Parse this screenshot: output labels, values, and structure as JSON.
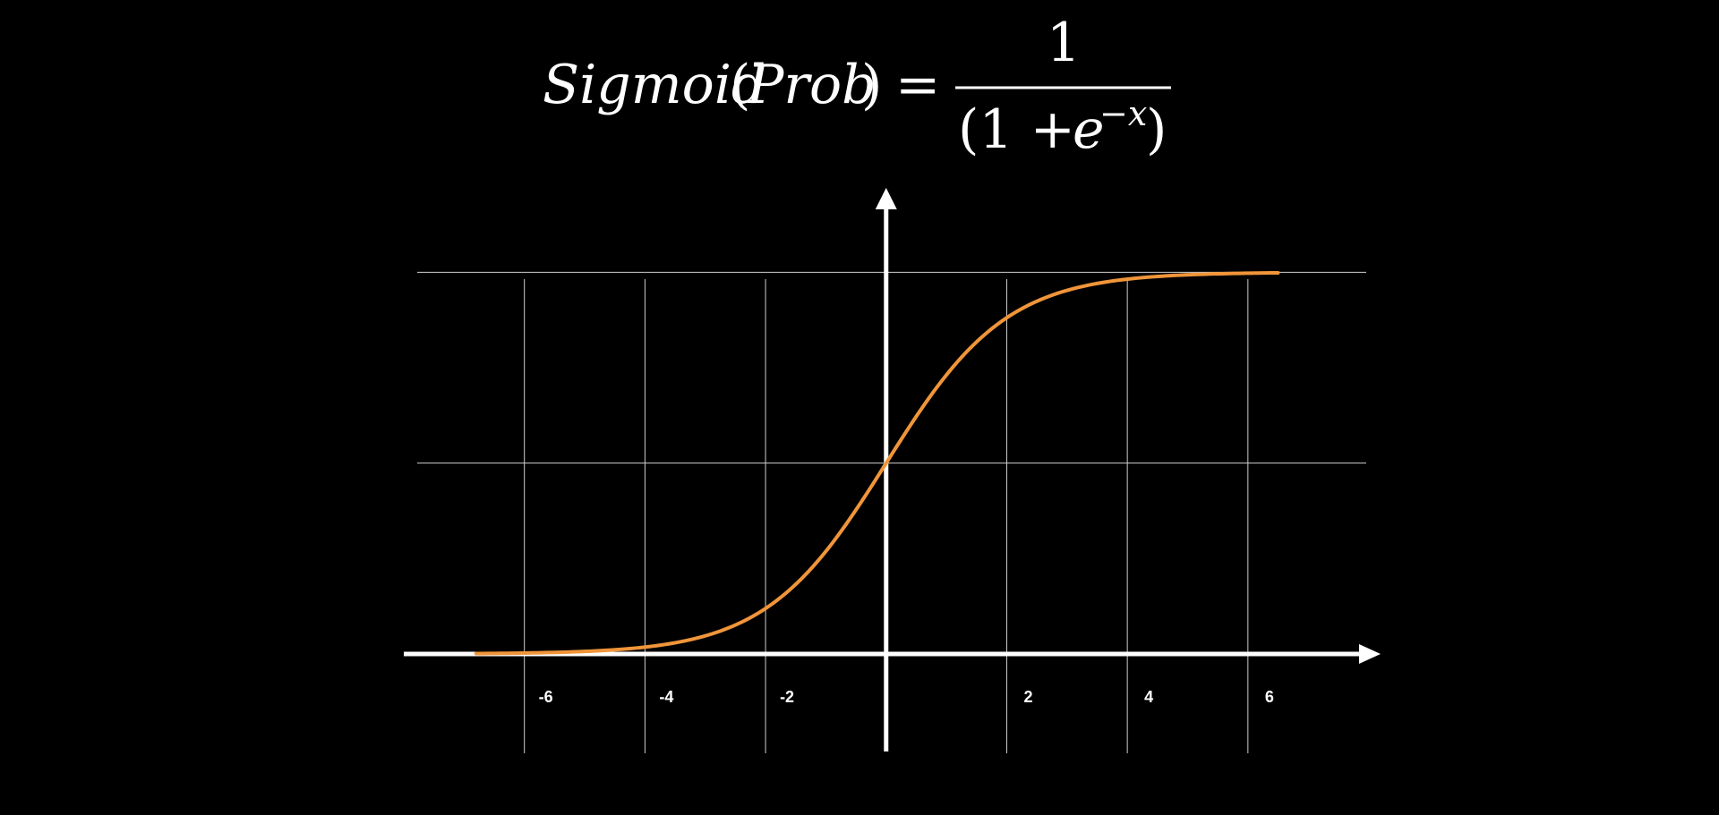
{
  "formula": {
    "lhs_fn": "Sigmoid",
    "lhs_arg": "Prob",
    "equals": "=",
    "numerator": "1",
    "denominator_open": "(1 + ",
    "denominator_base": "e",
    "denominator_exponent": "−x",
    "denominator_close": ")"
  },
  "colors": {
    "background": "#000000",
    "axis": "#ffffff",
    "grid": "#cfcfcf",
    "curve": "#f0953a"
  },
  "chart_data": {
    "type": "line",
    "title": "",
    "xlabel": "",
    "ylabel": "",
    "xlim": [
      -8.0,
      8.2
    ],
    "ylim": [
      0,
      1.05
    ],
    "grid": true,
    "x_ticks": [
      -6,
      -4,
      -2,
      2,
      4,
      6
    ],
    "x_tick_labels": [
      "-6",
      "-4",
      "-2",
      "2",
      "4",
      "6"
    ],
    "y_gridlines": [
      0.5,
      1.0
    ],
    "series": [
      {
        "function": "sigmoid",
        "x_range": [
          -6.8,
          6.5
        ],
        "color": "#f0953a"
      }
    ]
  }
}
